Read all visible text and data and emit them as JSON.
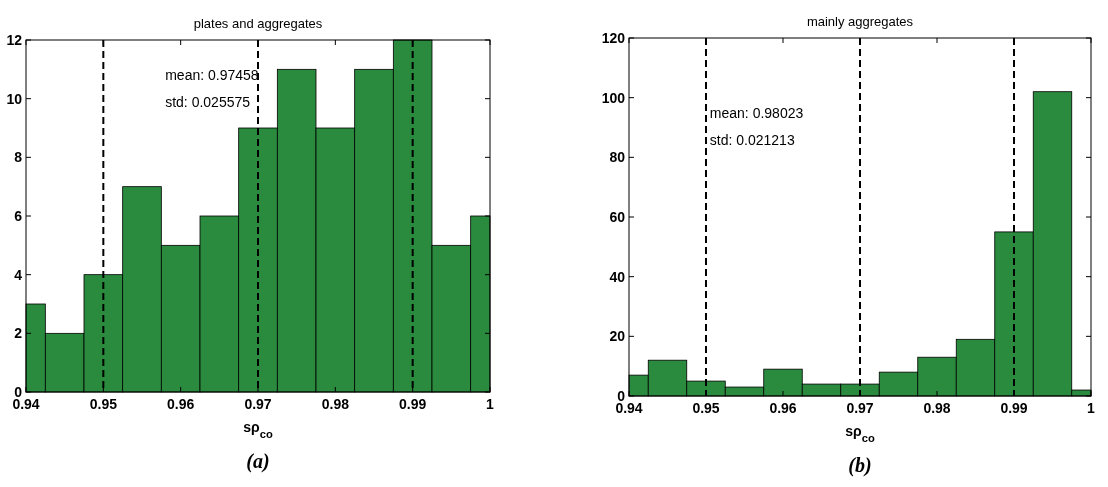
{
  "chart_data": [
    {
      "type": "histogram",
      "title": "plates and aggregates",
      "xlabel": "sρ$_{co}$",
      "bins": [
        0.94,
        0.9425,
        0.9475,
        0.9525,
        0.9575,
        0.9625,
        0.9675,
        0.9725,
        0.9775,
        0.9825,
        0.9875,
        0.9925,
        0.9975,
        1
      ],
      "values": [
        3,
        2,
        4,
        7,
        5,
        6,
        9,
        11,
        9,
        11,
        12,
        5,
        6
      ],
      "color": "#2a8a3e",
      "xlim": [
        0.94,
        1
      ],
      "xticks": [
        0.94,
        0.95,
        0.96,
        0.97,
        0.98,
        0.99,
        {
          "value": 1,
          "label": "1"
        }
      ],
      "ylim": [
        0,
        12
      ],
      "yticks": [
        0,
        2,
        4,
        6,
        8,
        10,
        12
      ],
      "grid": false,
      "ref_lines": [
        {
          "axis": "x",
          "value": 0.95,
          "color": "#000000",
          "line_style": "dashed"
        },
        {
          "axis": "x",
          "value": 0.97,
          "color": "#000000",
          "line_style": "dashed"
        },
        {
          "axis": "x",
          "value": 0.99,
          "color": "#000000",
          "line_style": "dashed"
        }
      ],
      "annotations": [
        "mean: 0.97458",
        "std: 0.025575",
        "(a)"
      ]
    },
    {
      "type": "histogram",
      "title": "mainly aggregates",
      "xlabel": "sρ$_{co}$",
      "bins": [
        0.94,
        0.9425,
        0.9475,
        0.9525,
        0.9575,
        0.9625,
        0.9675,
        0.9725,
        0.9775,
        0.9825,
        0.9875,
        0.9925,
        0.9975,
        1
      ],
      "values": [
        7,
        12,
        5,
        3,
        9,
        4,
        4,
        8,
        13,
        19,
        55,
        102,
        2
      ],
      "color": "#2a8a3e",
      "xlim": [
        0.94,
        1
      ],
      "xticks": [
        0.94,
        0.95,
        0.96,
        0.97,
        0.98,
        0.99,
        {
          "value": 1,
          "label": "1"
        }
      ],
      "ylim": [
        0,
        120
      ],
      "yticks": [
        0,
        20,
        40,
        60,
        80,
        100,
        120
      ],
      "grid": false,
      "ref_lines": [
        {
          "axis": "x",
          "value": 0.95,
          "color": "#000000",
          "line_style": "dashed"
        },
        {
          "axis": "x",
          "value": 0.97,
          "color": "#000000",
          "line_style": "dashed"
        },
        {
          "axis": "x",
          "value": 0.99,
          "color": "#000000",
          "line_style": "dashed"
        }
      ],
      "annotations": [
        "mean: 0.98023",
        "std: 0.021213",
        "(b)"
      ]
    }
  ]
}
